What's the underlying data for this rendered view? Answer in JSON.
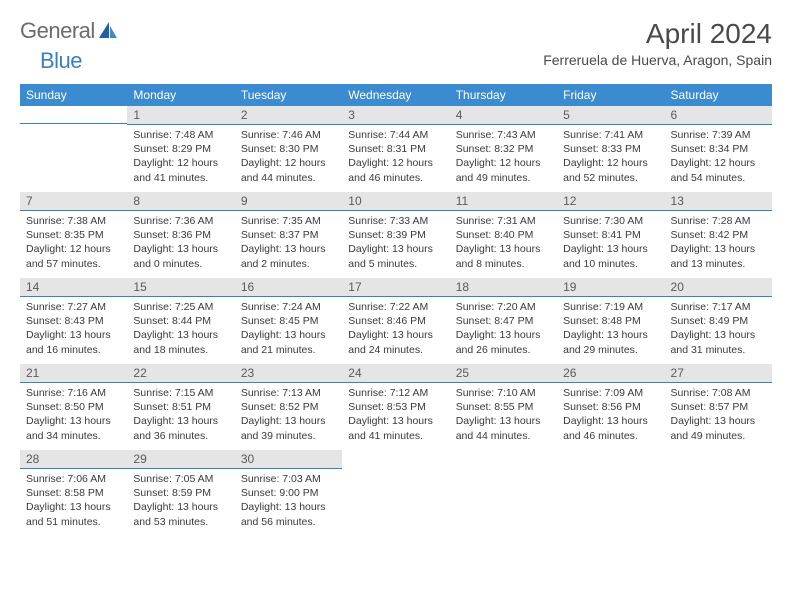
{
  "logo": {
    "general": "General",
    "blue": "Blue"
  },
  "title": "April 2024",
  "location": "Ferreruela de Huerva, Aragon, Spain",
  "colors": {
    "header_bg": "#3a8bd0",
    "header_fg": "#ffffff",
    "daynum_bg": "#e5e5e5",
    "daynum_fg": "#5a5a5a",
    "border": "#3a7fc4",
    "text": "#3a3a3a",
    "logo_gray": "#6b6b6b",
    "logo_blue": "#3a7fc4"
  },
  "weekdays": [
    "Sunday",
    "Monday",
    "Tuesday",
    "Wednesday",
    "Thursday",
    "Friday",
    "Saturday"
  ],
  "start_offset": 1,
  "days": [
    {
      "n": 1,
      "sunrise": "7:48 AM",
      "sunset": "8:29 PM",
      "daylight": "12 hours and 41 minutes."
    },
    {
      "n": 2,
      "sunrise": "7:46 AM",
      "sunset": "8:30 PM",
      "daylight": "12 hours and 44 minutes."
    },
    {
      "n": 3,
      "sunrise": "7:44 AM",
      "sunset": "8:31 PM",
      "daylight": "12 hours and 46 minutes."
    },
    {
      "n": 4,
      "sunrise": "7:43 AM",
      "sunset": "8:32 PM",
      "daylight": "12 hours and 49 minutes."
    },
    {
      "n": 5,
      "sunrise": "7:41 AM",
      "sunset": "8:33 PM",
      "daylight": "12 hours and 52 minutes."
    },
    {
      "n": 6,
      "sunrise": "7:39 AM",
      "sunset": "8:34 PM",
      "daylight": "12 hours and 54 minutes."
    },
    {
      "n": 7,
      "sunrise": "7:38 AM",
      "sunset": "8:35 PM",
      "daylight": "12 hours and 57 minutes."
    },
    {
      "n": 8,
      "sunrise": "7:36 AM",
      "sunset": "8:36 PM",
      "daylight": "13 hours and 0 minutes."
    },
    {
      "n": 9,
      "sunrise": "7:35 AM",
      "sunset": "8:37 PM",
      "daylight": "13 hours and 2 minutes."
    },
    {
      "n": 10,
      "sunrise": "7:33 AM",
      "sunset": "8:39 PM",
      "daylight": "13 hours and 5 minutes."
    },
    {
      "n": 11,
      "sunrise": "7:31 AM",
      "sunset": "8:40 PM",
      "daylight": "13 hours and 8 minutes."
    },
    {
      "n": 12,
      "sunrise": "7:30 AM",
      "sunset": "8:41 PM",
      "daylight": "13 hours and 10 minutes."
    },
    {
      "n": 13,
      "sunrise": "7:28 AM",
      "sunset": "8:42 PM",
      "daylight": "13 hours and 13 minutes."
    },
    {
      "n": 14,
      "sunrise": "7:27 AM",
      "sunset": "8:43 PM",
      "daylight": "13 hours and 16 minutes."
    },
    {
      "n": 15,
      "sunrise": "7:25 AM",
      "sunset": "8:44 PM",
      "daylight": "13 hours and 18 minutes."
    },
    {
      "n": 16,
      "sunrise": "7:24 AM",
      "sunset": "8:45 PM",
      "daylight": "13 hours and 21 minutes."
    },
    {
      "n": 17,
      "sunrise": "7:22 AM",
      "sunset": "8:46 PM",
      "daylight": "13 hours and 24 minutes."
    },
    {
      "n": 18,
      "sunrise": "7:20 AM",
      "sunset": "8:47 PM",
      "daylight": "13 hours and 26 minutes."
    },
    {
      "n": 19,
      "sunrise": "7:19 AM",
      "sunset": "8:48 PM",
      "daylight": "13 hours and 29 minutes."
    },
    {
      "n": 20,
      "sunrise": "7:17 AM",
      "sunset": "8:49 PM",
      "daylight": "13 hours and 31 minutes."
    },
    {
      "n": 21,
      "sunrise": "7:16 AM",
      "sunset": "8:50 PM",
      "daylight": "13 hours and 34 minutes."
    },
    {
      "n": 22,
      "sunrise": "7:15 AM",
      "sunset": "8:51 PM",
      "daylight": "13 hours and 36 minutes."
    },
    {
      "n": 23,
      "sunrise": "7:13 AM",
      "sunset": "8:52 PM",
      "daylight": "13 hours and 39 minutes."
    },
    {
      "n": 24,
      "sunrise": "7:12 AM",
      "sunset": "8:53 PM",
      "daylight": "13 hours and 41 minutes."
    },
    {
      "n": 25,
      "sunrise": "7:10 AM",
      "sunset": "8:55 PM",
      "daylight": "13 hours and 44 minutes."
    },
    {
      "n": 26,
      "sunrise": "7:09 AM",
      "sunset": "8:56 PM",
      "daylight": "13 hours and 46 minutes."
    },
    {
      "n": 27,
      "sunrise": "7:08 AM",
      "sunset": "8:57 PM",
      "daylight": "13 hours and 49 minutes."
    },
    {
      "n": 28,
      "sunrise": "7:06 AM",
      "sunset": "8:58 PM",
      "daylight": "13 hours and 51 minutes."
    },
    {
      "n": 29,
      "sunrise": "7:05 AM",
      "sunset": "8:59 PM",
      "daylight": "13 hours and 53 minutes."
    },
    {
      "n": 30,
      "sunrise": "7:03 AM",
      "sunset": "9:00 PM",
      "daylight": "13 hours and 56 minutes."
    }
  ],
  "labels": {
    "sunrise": "Sunrise:",
    "sunset": "Sunset:",
    "daylight": "Daylight:"
  }
}
